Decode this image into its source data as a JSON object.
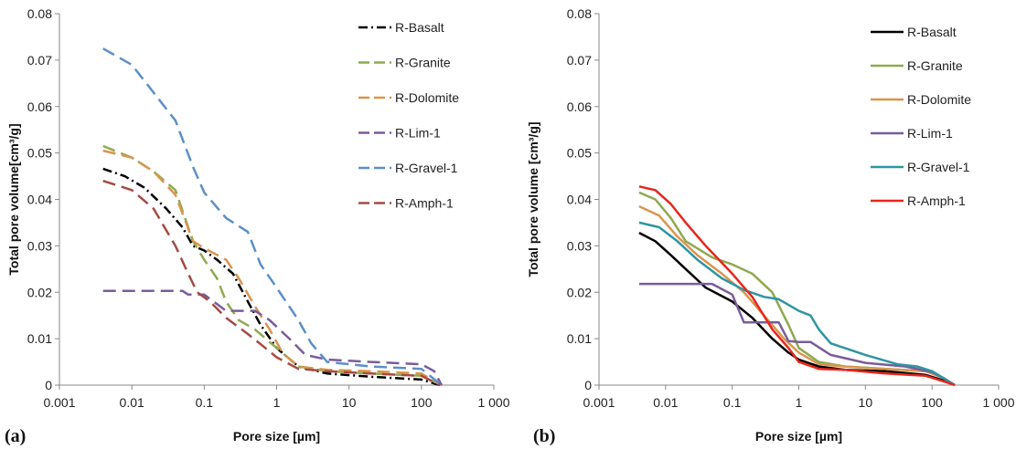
{
  "chart_data": [
    {
      "type": "line",
      "panel_label": "(a)",
      "title": "",
      "xlabel": "Pore size [µm]",
      "ylabel": "Total pore volume[cm³/g]",
      "xscale": "log",
      "xlim": [
        0.001,
        1000
      ],
      "ylim": [
        0,
        0.08
      ],
      "x_ticks": [
        0.001,
        0.01,
        0.1,
        1,
        10,
        100,
        1000
      ],
      "x_tick_labels": [
        "0.001",
        "0.01",
        "0.1",
        "1",
        "10",
        "100",
        "1 000"
      ],
      "y_ticks": [
        0,
        0.01,
        0.02,
        0.03,
        0.04,
        0.05,
        0.06,
        0.07,
        0.08
      ],
      "y_tick_labels": [
        "0",
        "0.01",
        "0.02",
        "0.03",
        "0.04",
        "0.05",
        "0.06",
        "0.07",
        "0.08"
      ],
      "line_style": "dashed",
      "legend": "right",
      "grid": false,
      "series": [
        {
          "name": "R-Basalt",
          "color": "#000000",
          "dash": "dashdot",
          "points": [
            [
              0.004,
              0.0466
            ],
            [
              0.008,
              0.045
            ],
            [
              0.015,
              0.0425
            ],
            [
              0.03,
              0.038
            ],
            [
              0.05,
              0.034
            ],
            [
              0.07,
              0.03
            ],
            [
              0.1,
              0.029
            ],
            [
              0.15,
              0.027
            ],
            [
              0.25,
              0.024
            ],
            [
              0.4,
              0.018
            ],
            [
              0.6,
              0.013
            ],
            [
              1,
              0.008
            ],
            [
              2,
              0.004
            ],
            [
              5,
              0.0025
            ],
            [
              20,
              0.0018
            ],
            [
              100,
              0.0012
            ],
            [
              180,
              0
            ]
          ]
        },
        {
          "name": "R-Granite",
          "color": "#8fa94f",
          "dash": "dashed",
          "points": [
            [
              0.004,
              0.0515
            ],
            [
              0.01,
              0.049
            ],
            [
              0.02,
              0.046
            ],
            [
              0.04,
              0.042
            ],
            [
              0.07,
              0.031
            ],
            [
              0.1,
              0.027
            ],
            [
              0.15,
              0.023
            ],
            [
              0.2,
              0.018
            ],
            [
              0.3,
              0.014
            ],
            [
              0.5,
              0.012
            ],
            [
              1,
              0.008
            ],
            [
              2,
              0.004
            ],
            [
              5,
              0.003
            ],
            [
              20,
              0.0025
            ],
            [
              100,
              0.002
            ],
            [
              190,
              0
            ]
          ]
        },
        {
          "name": "R-Dolomite",
          "color": "#d9954e",
          "dash": "dashed",
          "points": [
            [
              0.004,
              0.0505
            ],
            [
              0.01,
              0.049
            ],
            [
              0.02,
              0.046
            ],
            [
              0.04,
              0.041
            ],
            [
              0.07,
              0.031
            ],
            [
              0.1,
              0.0295
            ],
            [
              0.2,
              0.027
            ],
            [
              0.3,
              0.023
            ],
            [
              0.5,
              0.017
            ],
            [
              0.8,
              0.012
            ],
            [
              1.2,
              0.007
            ],
            [
              2,
              0.004
            ],
            [
              5,
              0.0033
            ],
            [
              20,
              0.003
            ],
            [
              100,
              0.0025
            ],
            [
              190,
              0
            ]
          ]
        },
        {
          "name": "R-Lim-1",
          "color": "#7a5c99",
          "dash": "dashed",
          "points": [
            [
              0.004,
              0.0203
            ],
            [
              0.01,
              0.0203
            ],
            [
              0.05,
              0.0203
            ],
            [
              0.06,
              0.0195
            ],
            [
              0.1,
              0.0195
            ],
            [
              0.2,
              0.016
            ],
            [
              0.5,
              0.016
            ],
            [
              0.8,
              0.014
            ],
            [
              1.5,
              0.01
            ],
            [
              2.5,
              0.0065
            ],
            [
              5,
              0.0055
            ],
            [
              20,
              0.005
            ],
            [
              100,
              0.0045
            ],
            [
              150,
              0.003
            ],
            [
              190,
              0
            ]
          ]
        },
        {
          "name": "R-Gravel-1",
          "color": "#5b8fc7",
          "dash": "dashed",
          "points": [
            [
              0.004,
              0.0725
            ],
            [
              0.01,
              0.069
            ],
            [
              0.02,
              0.063
            ],
            [
              0.04,
              0.057
            ],
            [
              0.07,
              0.047
            ],
            [
              0.1,
              0.0415
            ],
            [
              0.2,
              0.036
            ],
            [
              0.4,
              0.033
            ],
            [
              0.6,
              0.026
            ],
            [
              1,
              0.021
            ],
            [
              2,
              0.014
            ],
            [
              3,
              0.009
            ],
            [
              5,
              0.005
            ],
            [
              20,
              0.004
            ],
            [
              100,
              0.0035
            ],
            [
              190,
              0
            ]
          ]
        },
        {
          "name": "R-Amph-1",
          "color": "#a54a45",
          "dash": "dashed",
          "points": [
            [
              0.004,
              0.044
            ],
            [
              0.01,
              0.042
            ],
            [
              0.02,
              0.038
            ],
            [
              0.04,
              0.03
            ],
            [
              0.06,
              0.024
            ],
            [
              0.08,
              0.02
            ],
            [
              0.12,
              0.018
            ],
            [
              0.2,
              0.0145
            ],
            [
              0.4,
              0.011
            ],
            [
              0.7,
              0.008
            ],
            [
              1,
              0.006
            ],
            [
              2,
              0.0035
            ],
            [
              5,
              0.003
            ],
            [
              20,
              0.0025
            ],
            [
              100,
              0.002
            ],
            [
              180,
              0
            ]
          ]
        }
      ]
    },
    {
      "type": "line",
      "panel_label": "(b)",
      "title": "",
      "xlabel": "Pore size [µm]",
      "ylabel": "Total pore volume [cm³/g]",
      "xscale": "log",
      "xlim": [
        0.001,
        1000
      ],
      "ylim": [
        0,
        0.08
      ],
      "x_ticks": [
        0.001,
        0.01,
        0.1,
        1,
        10,
        100,
        1000
      ],
      "x_tick_labels": [
        "0.001",
        "0.01",
        "0.1",
        "1",
        "10",
        "100",
        "1 000"
      ],
      "y_ticks": [
        0,
        0.01,
        0.02,
        0.03,
        0.04,
        0.05,
        0.06,
        0.07,
        0.08
      ],
      "y_tick_labels": [
        "0",
        "0.01",
        "0.02",
        "0.03",
        "0.04",
        "0.05",
        "0.06",
        "0.07",
        "0.08"
      ],
      "line_style": "solid",
      "legend": "right",
      "grid": false,
      "series": [
        {
          "name": "R-Basalt",
          "color": "#000000",
          "points": [
            [
              0.004,
              0.0328
            ],
            [
              0.007,
              0.031
            ],
            [
              0.012,
              0.028
            ],
            [
              0.02,
              0.025
            ],
            [
              0.04,
              0.021
            ],
            [
              0.1,
              0.018
            ],
            [
              0.2,
              0.0145
            ],
            [
              0.4,
              0.01
            ],
            [
              0.7,
              0.007
            ],
            [
              1,
              0.0055
            ],
            [
              2,
              0.004
            ],
            [
              5,
              0.0033
            ],
            [
              20,
              0.003
            ],
            [
              80,
              0.0022
            ],
            [
              150,
              0.001
            ],
            [
              220,
              0
            ]
          ]
        },
        {
          "name": "R-Granite",
          "color": "#8fa94f",
          "points": [
            [
              0.004,
              0.0415
            ],
            [
              0.007,
              0.04
            ],
            [
              0.012,
              0.036
            ],
            [
              0.02,
              0.031
            ],
            [
              0.05,
              0.0275
            ],
            [
              0.1,
              0.026
            ],
            [
              0.2,
              0.024
            ],
            [
              0.4,
              0.02
            ],
            [
              0.7,
              0.013
            ],
            [
              1,
              0.008
            ],
            [
              2,
              0.005
            ],
            [
              5,
              0.004
            ],
            [
              20,
              0.0035
            ],
            [
              80,
              0.003
            ],
            [
              150,
              0.0015
            ],
            [
              220,
              0
            ]
          ]
        },
        {
          "name": "R-Dolomite",
          "color": "#d9954e",
          "points": [
            [
              0.004,
              0.0385
            ],
            [
              0.008,
              0.0365
            ],
            [
              0.015,
              0.032
            ],
            [
              0.03,
              0.028
            ],
            [
              0.07,
              0.024
            ],
            [
              0.15,
              0.02
            ],
            [
              0.3,
              0.015
            ],
            [
              0.6,
              0.01
            ],
            [
              1,
              0.007
            ],
            [
              2,
              0.0045
            ],
            [
              5,
              0.004
            ],
            [
              20,
              0.0035
            ],
            [
              80,
              0.003
            ],
            [
              150,
              0.0015
            ],
            [
              220,
              0
            ]
          ]
        },
        {
          "name": "R-Lim-1",
          "color": "#7a5c99",
          "points": [
            [
              0.004,
              0.0218
            ],
            [
              0.01,
              0.0218
            ],
            [
              0.05,
              0.0218
            ],
            [
              0.1,
              0.0195
            ],
            [
              0.15,
              0.0135
            ],
            [
              0.3,
              0.0135
            ],
            [
              0.5,
              0.0135
            ],
            [
              0.7,
              0.0095
            ],
            [
              1,
              0.0093
            ],
            [
              1.5,
              0.0093
            ],
            [
              3,
              0.0065
            ],
            [
              10,
              0.0048
            ],
            [
              40,
              0.004
            ],
            [
              100,
              0.0028
            ],
            [
              150,
              0.0015
            ],
            [
              220,
              0
            ]
          ]
        },
        {
          "name": "R-Gravel-1",
          "color": "#2e95a3",
          "points": [
            [
              0.004,
              0.035
            ],
            [
              0.008,
              0.034
            ],
            [
              0.015,
              0.031
            ],
            [
              0.03,
              0.027
            ],
            [
              0.07,
              0.023
            ],
            [
              0.15,
              0.0205
            ],
            [
              0.3,
              0.019
            ],
            [
              0.5,
              0.0185
            ],
            [
              1,
              0.016
            ],
            [
              1.5,
              0.015
            ],
            [
              2,
              0.012
            ],
            [
              3,
              0.009
            ],
            [
              10,
              0.0065
            ],
            [
              30,
              0.0045
            ],
            [
              60,
              0.004
            ],
            [
              100,
              0.003
            ],
            [
              220,
              0
            ]
          ]
        },
        {
          "name": "R-Amph-1",
          "color": "#e8261c",
          "points": [
            [
              0.004,
              0.0428
            ],
            [
              0.007,
              0.042
            ],
            [
              0.012,
              0.039
            ],
            [
              0.02,
              0.035
            ],
            [
              0.04,
              0.03
            ],
            [
              0.1,
              0.024
            ],
            [
              0.2,
              0.019
            ],
            [
              0.4,
              0.012
            ],
            [
              0.7,
              0.008
            ],
            [
              1,
              0.005
            ],
            [
              2,
              0.0035
            ],
            [
              5,
              0.0033
            ],
            [
              20,
              0.0025
            ],
            [
              80,
              0.002
            ],
            [
              150,
              0.0008
            ],
            [
              220,
              0
            ]
          ]
        }
      ]
    }
  ]
}
